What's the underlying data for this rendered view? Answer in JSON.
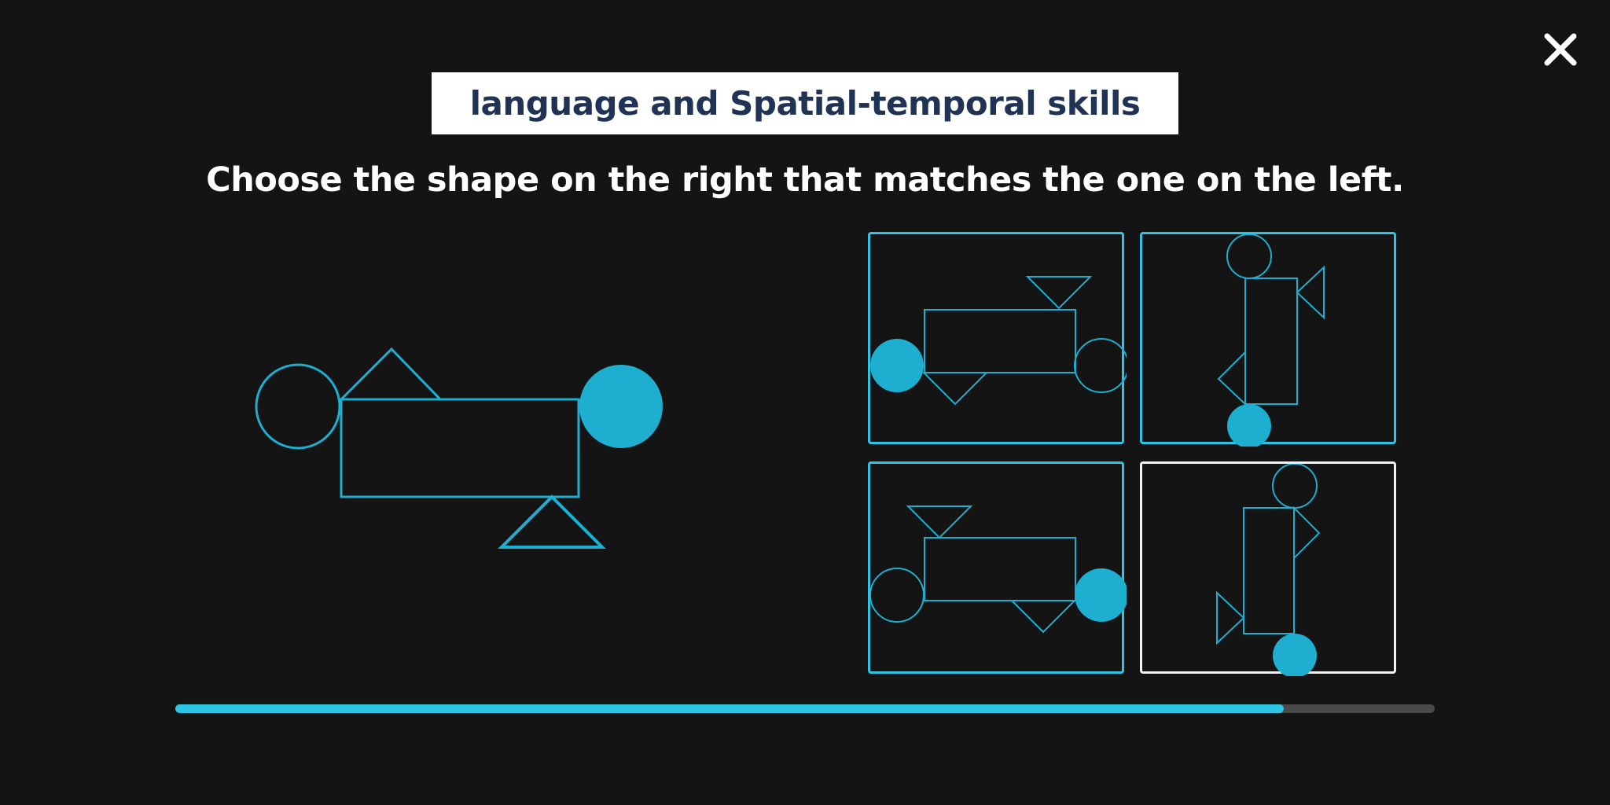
{
  "header": {
    "title": "language and Spatial-temporal skills"
  },
  "question": {
    "prompt": "Choose the shape on the right that matches the one on the left."
  },
  "options": [
    {
      "label": "option-1",
      "selected": false
    },
    {
      "label": "option-2",
      "selected": false
    },
    {
      "label": "option-3",
      "selected": false
    },
    {
      "label": "option-4",
      "selected": true
    }
  ],
  "progress": {
    "fraction": 0.88
  },
  "icons": {
    "close": "close-icon"
  },
  "colors": {
    "background": "#141414",
    "accent": "#2ec4e3",
    "shape_fill": "#1daed0",
    "title_text": "#213355",
    "selected_border": "#f2f2f2",
    "progress_track": "#4a4a4a"
  }
}
